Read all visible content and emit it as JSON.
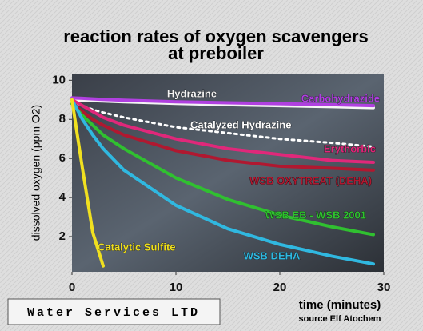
{
  "chart_data": {
    "type": "line",
    "title": [
      "reaction rates of oxygen scavengers",
      "at preboiler"
    ],
    "x_label": "time (minutes)",
    "y_label": "dissolved oxygen (ppm O2)",
    "source": "source Elf Atochem",
    "logo": "Water Services LTD",
    "x": [
      0,
      1,
      2,
      3,
      5,
      10,
      15,
      20,
      25,
      29
    ],
    "xlim": [
      0,
      30
    ],
    "xticks": [
      0,
      10,
      20,
      30
    ],
    "ylim": [
      0.2,
      10.3
    ],
    "yticks": [
      2,
      4,
      6,
      8,
      10
    ],
    "series": [
      {
        "name": "Hydrazine",
        "color": "#f4f4f4",
        "values": [
          9.0,
          8.98,
          8.96,
          8.94,
          8.9,
          8.82,
          8.75,
          8.7,
          8.65,
          8.6
        ]
      },
      {
        "name": "Carbohydrazide",
        "color": "#b040e0",
        "values": [
          9.1,
          9.08,
          9.05,
          9.02,
          8.98,
          8.9,
          8.85,
          8.8,
          8.75,
          8.7
        ]
      },
      {
        "name": "Catalyzed Hydrazine",
        "color": "#ffffff",
        "dashed": true,
        "values": [
          8.9,
          8.7,
          8.5,
          8.35,
          8.1,
          7.6,
          7.3,
          7.0,
          6.8,
          6.6
        ]
      },
      {
        "name": "Erythorbic",
        "color": "#e0287a",
        "values": [
          9.0,
          8.7,
          8.4,
          8.1,
          7.7,
          7.0,
          6.5,
          6.2,
          5.9,
          5.8
        ]
      },
      {
        "name": "WSB OXYTREAT (DEHA)",
        "color": "#b01830",
        "values": [
          8.8,
          8.4,
          8.0,
          7.7,
          7.2,
          6.4,
          5.9,
          5.6,
          5.5,
          5.4
        ]
      },
      {
        "name": "WSB EB - WSB 2001",
        "color": "#30c030",
        "values": [
          8.8,
          8.2,
          7.7,
          7.2,
          6.5,
          5.0,
          3.9,
          3.1,
          2.5,
          2.1
        ]
      },
      {
        "name": "WSB DEHA",
        "color": "#30b8e0",
        "values": [
          9.0,
          8.0,
          7.2,
          6.5,
          5.4,
          3.6,
          2.4,
          1.6,
          1.0,
          0.6
        ]
      },
      {
        "name": "Catalytic Sulfite",
        "color": "#f0e020",
        "values": [
          9.0,
          5.5,
          2.2,
          0.5,
          null,
          null,
          null,
          null,
          null,
          null
        ]
      }
    ]
  }
}
